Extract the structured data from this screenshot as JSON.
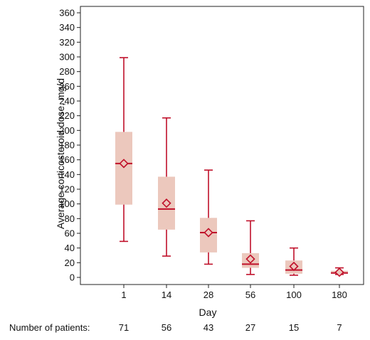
{
  "chart_data": {
    "type": "box",
    "xlabel": "Day",
    "ylabel": "Average corticosteroid dose, mg/d",
    "ylim": [
      0,
      360
    ],
    "yticks": [
      0,
      20,
      40,
      60,
      80,
      100,
      120,
      140,
      160,
      180,
      200,
      220,
      240,
      260,
      280,
      300,
      320,
      340,
      360
    ],
    "categories": [
      "1",
      "14",
      "28",
      "56",
      "100",
      "180"
    ],
    "boxes": [
      {
        "category": "1",
        "min": 49,
        "q1": 99,
        "median": 155,
        "q3": 198,
        "max": 299,
        "mean": 155
      },
      {
        "category": "14",
        "min": 29,
        "q1": 65,
        "median": 93,
        "q3": 137,
        "max": 217,
        "mean": 101
      },
      {
        "category": "28",
        "min": 18,
        "q1": 34,
        "median": 61,
        "q3": 81,
        "max": 146,
        "mean": 61
      },
      {
        "category": "56",
        "min": 4,
        "q1": 13,
        "median": 18,
        "q3": 33,
        "max": 77,
        "mean": 25
      },
      {
        "category": "100",
        "min": 3,
        "q1": 5,
        "median": 10,
        "q3": 23,
        "max": 40,
        "mean": 15
      },
      {
        "category": "180",
        "min": 4,
        "q1": 5,
        "median": 6,
        "q3": 9,
        "max": 13,
        "mean": 7
      }
    ],
    "patients_label": "Number of patients:",
    "patients": [
      "71",
      "56",
      "43",
      "27",
      "15",
      "7"
    ],
    "colors": {
      "box_fill": "#ecc8bd",
      "line": "#c0102a",
      "axis": "#222222"
    },
    "grid": false
  }
}
